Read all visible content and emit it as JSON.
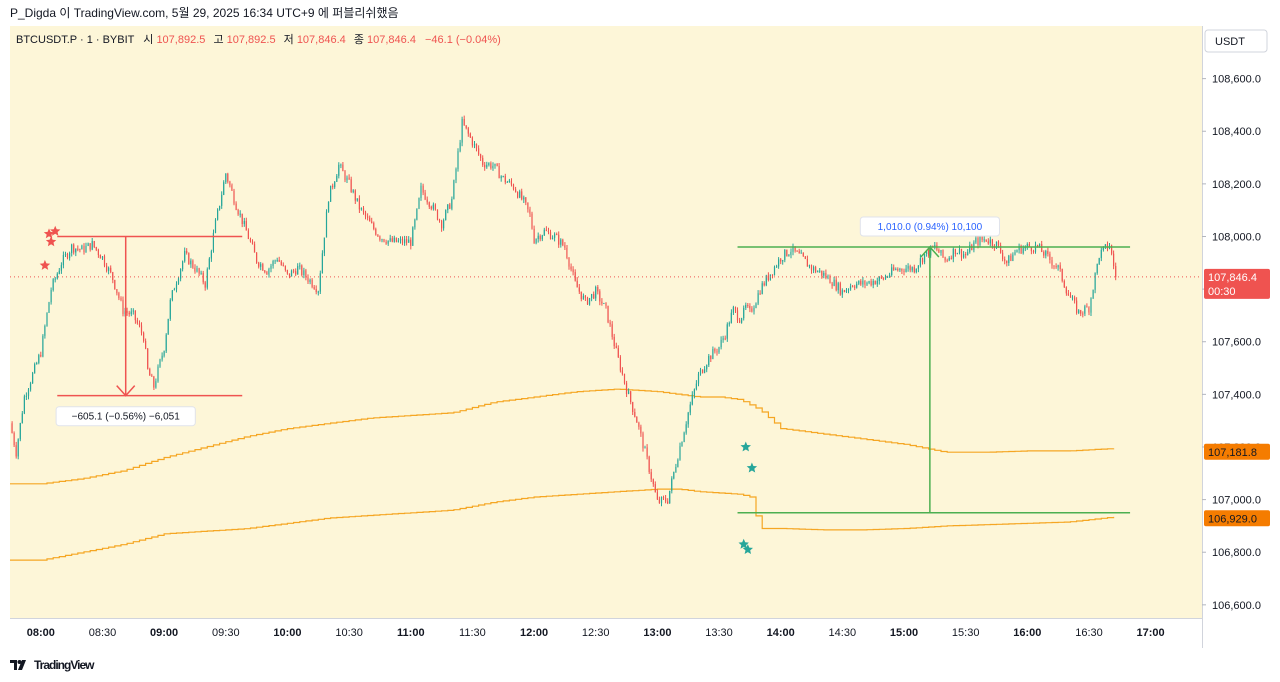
{
  "header": {
    "caption": "P_Digda 이 TradingView.com, 5월 29, 2025 16:34 UTC+9 에 퍼블리쉬했음"
  },
  "footer": {
    "brand": "TradingView",
    "logo_icon": "tradingview-logo-icon"
  },
  "legend": {
    "symbol": "BTCUSDT.P · 1 · BYBIT",
    "open_label": "시",
    "open_value": "107,892.5",
    "high_label": "고",
    "high_value": "107,892.5",
    "low_label": "저",
    "low_value": "107,846.4",
    "close_label": "종",
    "close_value": "107,846.4",
    "change": "−46.1 (−0.04%)"
  },
  "colors": {
    "background": "#fdf6d8",
    "up": "#26a69a",
    "down": "#ef5350",
    "ma": "#f5a623",
    "measure_down": "#ef5350",
    "measure_up": "#4caf50",
    "price_tag_red": "#ef5350",
    "price_tag_orange": "#f57c00"
  },
  "chart_data": {
    "type": "candlestick",
    "symbol": "BTCUSDT.P",
    "interval": "1",
    "exchange": "BYBIT",
    "currency": "USDT",
    "ylim": [
      106550,
      108800
    ],
    "y_ticks": [
      "106,600.0",
      "106,800.0",
      "107,000.0",
      "107,200.0",
      "107,400.0",
      "107,600.0",
      "107,800.0",
      "108,000.0",
      "108,200.0",
      "108,400.0",
      "108,600.0"
    ],
    "y_tick_values": [
      106600,
      106800,
      107000,
      107200,
      107400,
      107600,
      107800,
      108000,
      108200,
      108400,
      108600
    ],
    "x_ticks": [
      "08:00",
      "08:30",
      "09:00",
      "09:30",
      "10:00",
      "10:30",
      "11:00",
      "11:30",
      "12:00",
      "12:30",
      "13:00",
      "13:30",
      "14:00",
      "14:30",
      "15:00",
      "15:30",
      "16:00",
      "16:30",
      "17:00"
    ],
    "x_tick_minutes": [
      0,
      30,
      60,
      90,
      120,
      150,
      180,
      210,
      240,
      270,
      300,
      330,
      360,
      390,
      420,
      450,
      480,
      510,
      540
    ],
    "x_bold_ticks": [
      "08:00",
      "09:00",
      "10:00",
      "11:00",
      "12:00",
      "13:00",
      "14:00",
      "15:00",
      "16:00",
      "17:00"
    ],
    "x_range_minutes": [
      -15,
      565
    ],
    "price_path_minutes": [
      -15,
      -12,
      -8,
      0,
      5,
      10,
      15,
      20,
      25,
      30,
      35,
      40,
      45,
      50,
      52,
      55,
      60,
      63,
      65,
      70,
      75,
      80,
      85,
      90,
      95,
      100,
      105,
      110,
      115,
      120,
      125,
      130,
      135,
      140,
      145,
      150,
      155,
      160,
      165,
      170,
      175,
      180,
      183,
      185,
      190,
      195,
      200,
      205,
      210,
      215,
      220,
      225,
      230,
      235,
      238,
      240,
      245,
      250,
      255,
      260,
      265,
      270,
      275,
      280,
      285,
      290,
      295,
      300,
      305,
      310,
      315,
      320,
      325,
      330,
      333,
      335,
      337,
      340,
      342,
      343,
      345,
      348,
      350,
      355,
      360,
      365,
      370,
      375,
      380,
      385,
      390,
      395,
      400,
      405,
      410,
      415,
      420,
      425,
      430,
      435,
      440,
      445,
      450,
      455,
      460,
      465,
      470,
      475,
      480,
      485,
      490,
      495,
      500,
      505,
      510,
      515,
      520,
      523
    ],
    "price_path_values": [
      107290,
      107180,
      107390,
      107560,
      107800,
      107900,
      107960,
      107950,
      107970,
      107920,
      107840,
      107720,
      107700,
      107620,
      107490,
      107430,
      107580,
      107750,
      107810,
      107930,
      107880,
      107820,
      108050,
      108240,
      108120,
      108020,
      107910,
      107870,
      107920,
      107850,
      107880,
      107840,
      107800,
      108150,
      108270,
      108200,
      108110,
      108050,
      108000,
      107980,
      107980,
      107980,
      108090,
      108180,
      108120,
      108050,
      108140,
      108430,
      108360,
      108280,
      108270,
      108220,
      108190,
      108130,
      108080,
      107990,
      108020,
      108000,
      107960,
      107820,
      107750,
      107790,
      107720,
      107560,
      107420,
      107300,
      107150,
      106990,
      107000,
      107170,
      107330,
      107470,
      107540,
      107580,
      107630,
      107680,
      107720,
      107690,
      107710,
      107730,
      107710,
      107760,
      107800,
      107860,
      107920,
      107950,
      107920,
      107880,
      107860,
      107830,
      107790,
      107820,
      107820,
      107830,
      107840,
      107870,
      107880,
      107880,
      107930,
      107960,
      107910,
      107950,
      107930,
      107980,
      107990,
      107970,
      107900,
      107950,
      107960,
      107960,
      107920,
      107880,
      107780,
      107710,
      107730,
      107930,
      107970,
      107846.4
    ],
    "ma_series": [
      {
        "name": "MA upper",
        "minutes": [
          -15,
          0,
          20,
          40,
          60,
          80,
          100,
          120,
          140,
          160,
          180,
          200,
          220,
          240,
          260,
          280,
          300,
          310,
          320,
          330,
          340,
          350,
          360,
          380,
          400,
          420,
          440,
          460,
          480,
          500,
          523
        ],
        "values": [
          107060,
          107060,
          107080,
          107110,
          107160,
          107200,
          107240,
          107270,
          107290,
          107310,
          107320,
          107330,
          107370,
          107390,
          107410,
          107420,
          107410,
          107400,
          107390,
          107390,
          107380,
          107340,
          107270,
          107250,
          107230,
          107210,
          107180,
          107180,
          107185,
          107185,
          107195
        ]
      },
      {
        "name": "MA lower",
        "minutes": [
          -15,
          0,
          20,
          40,
          60,
          80,
          100,
          120,
          140,
          160,
          180,
          200,
          220,
          240,
          260,
          280,
          300,
          310,
          320,
          330,
          340,
          345,
          350,
          360,
          380,
          400,
          420,
          440,
          460,
          480,
          500,
          523
        ],
        "values": [
          106770,
          106770,
          106800,
          106830,
          106870,
          106880,
          106890,
          106910,
          106930,
          106940,
          106950,
          106960,
          106990,
          107010,
          107020,
          107030,
          107040,
          107040,
          107030,
          107025,
          107020,
          107010,
          106890,
          106890,
          106885,
          106885,
          106890,
          106900,
          106905,
          106910,
          106915,
          106935
        ]
      }
    ],
    "measurements": [
      {
        "label": "−605.1 (−0.56%) −6,051",
        "from_value": 108000,
        "to_value": 107395,
        "start_minute": 8,
        "end_minute": 98,
        "direction": "down"
      },
      {
        "label": "1,010.0 (0.94%) 10,100",
        "from_value": 106950,
        "to_value": 107960,
        "start_minute": 339,
        "end_minute": 530,
        "direction": "up"
      }
    ],
    "price_tags": [
      {
        "value": 107846.4,
        "label": "107,846.4",
        "sub": "00:30",
        "kind": "last"
      },
      {
        "value": 107181.8,
        "label": "107,181.8",
        "kind": "ma"
      },
      {
        "value": 106929.0,
        "label": "106,929.0",
        "kind": "ma"
      }
    ],
    "markers": [
      {
        "minute": 4,
        "value": 108010,
        "shape": "star",
        "color": "down"
      },
      {
        "minute": 7,
        "value": 108020,
        "shape": "star",
        "color": "down"
      },
      {
        "minute": 2,
        "value": 107890,
        "shape": "star",
        "color": "down"
      },
      {
        "minute": 5,
        "value": 107980,
        "shape": "star",
        "color": "down"
      },
      {
        "minute": 343,
        "value": 107200,
        "shape": "star",
        "color": "up"
      },
      {
        "minute": 346,
        "value": 107120,
        "shape": "star",
        "color": "up"
      },
      {
        "minute": 342,
        "value": 106830,
        "shape": "star",
        "color": "up"
      },
      {
        "minute": 344,
        "value": 106810,
        "shape": "star",
        "color": "up"
      }
    ]
  }
}
